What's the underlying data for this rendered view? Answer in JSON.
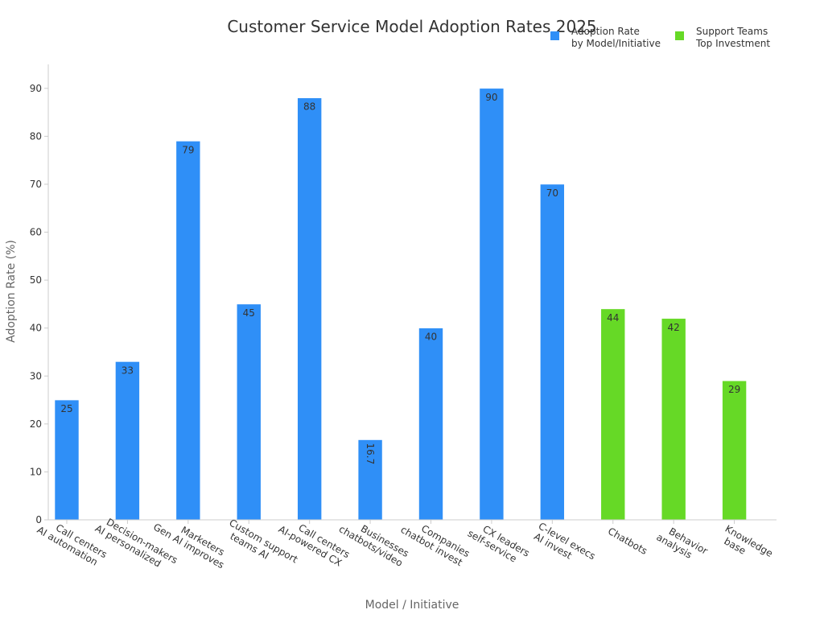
{
  "chart_data": {
    "type": "bar",
    "title": "Customer Service Model Adoption Rates 2025",
    "xlabel": "Model / Initiative",
    "ylabel": "Adoption Rate (%)",
    "ylim": [
      0,
      95
    ],
    "yticks": [
      0,
      10,
      20,
      30,
      40,
      50,
      60,
      70,
      80,
      90
    ],
    "grid": false,
    "legend_position": "top-right",
    "categories": [
      [
        "Call centers",
        "AI automation"
      ],
      [
        "Decision-makers",
        "AI personalized"
      ],
      [
        "Marketers",
        "Gen AI improves"
      ],
      [
        "Custom support",
        "teams AI"
      ],
      [
        "Call centers",
        "AI-powered CX"
      ],
      [
        "Businesses",
        "chatbots/video"
      ],
      [
        "Companies",
        "chatbot invest"
      ],
      [
        "CX leaders",
        "self-service"
      ],
      [
        "C-level execs",
        "AI invest"
      ],
      [
        "Chatbots"
      ],
      [
        "Behavior",
        "analysis"
      ],
      [
        "Knowledge",
        "base"
      ]
    ],
    "series": [
      {
        "name": [
          "Adoption Rate",
          "by Model/Initiative"
        ],
        "color": "#2f8ff7",
        "values": [
          25,
          33,
          79,
          45,
          88,
          16.7,
          40,
          90,
          70,
          null,
          null,
          null
        ],
        "labels": [
          "25",
          "33",
          "79",
          "45",
          "88",
          "16.7",
          "40",
          "90",
          "70",
          "",
          "",
          ""
        ]
      },
      {
        "name": [
          "Support Teams",
          "Top Investment"
        ],
        "color": "#66d926",
        "values": [
          null,
          null,
          null,
          null,
          null,
          null,
          null,
          null,
          null,
          44,
          42,
          29
        ],
        "labels": [
          "",
          "",
          "",
          "",
          "",
          "",
          "",
          "",
          "",
          "44",
          "42",
          "29"
        ]
      }
    ]
  }
}
